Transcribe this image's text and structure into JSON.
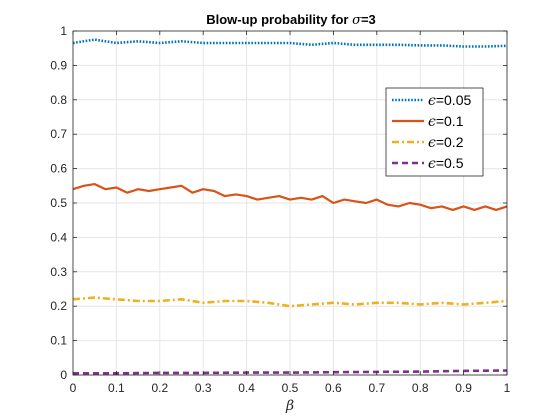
{
  "chart_data": {
    "type": "line",
    "title": {
      "prefix": "Blow-up probability for ",
      "symbol": "σ",
      "suffix": "=3"
    },
    "xlabel": "β",
    "ylabel": "",
    "xlim": [
      0,
      1
    ],
    "ylim": [
      0,
      1
    ],
    "grid": true,
    "legend_position": "right",
    "x_ticks": [
      "0",
      "0.1",
      "0.2",
      "0.3",
      "0.4",
      "0.5",
      "0.6",
      "0.7",
      "0.8",
      "0.9",
      "1"
    ],
    "y_ticks": [
      "0",
      "0.1",
      "0.2",
      "0.3",
      "0.4",
      "0.5",
      "0.6",
      "0.7",
      "0.8",
      "0.9",
      "1"
    ],
    "series": [
      {
        "legend_symbol": "ϵ",
        "legend_value": "=0.05",
        "color": "#0072BD",
        "style": "dotted",
        "x": [
          0,
          0.05,
          0.1,
          0.15,
          0.2,
          0.25,
          0.3,
          0.35,
          0.4,
          0.45,
          0.5,
          0.55,
          0.6,
          0.65,
          0.7,
          0.75,
          0.8,
          0.85,
          0.9,
          0.95,
          1
        ],
        "y": [
          0.965,
          0.975,
          0.965,
          0.97,
          0.965,
          0.97,
          0.965,
          0.965,
          0.965,
          0.965,
          0.965,
          0.96,
          0.965,
          0.96,
          0.96,
          0.96,
          0.958,
          0.958,
          0.955,
          0.955,
          0.957
        ]
      },
      {
        "legend_symbol": "ϵ",
        "legend_value": "=0.1",
        "color": "#D95319",
        "style": "solid",
        "x": [
          0,
          0.025,
          0.05,
          0.075,
          0.1,
          0.125,
          0.15,
          0.175,
          0.2,
          0.225,
          0.25,
          0.275,
          0.3,
          0.325,
          0.35,
          0.375,
          0.4,
          0.425,
          0.45,
          0.475,
          0.5,
          0.525,
          0.55,
          0.575,
          0.6,
          0.625,
          0.65,
          0.675,
          0.7,
          0.725,
          0.75,
          0.775,
          0.8,
          0.825,
          0.85,
          0.875,
          0.9,
          0.925,
          0.95,
          0.975,
          1
        ],
        "y": [
          0.54,
          0.55,
          0.555,
          0.54,
          0.545,
          0.53,
          0.54,
          0.535,
          0.54,
          0.545,
          0.55,
          0.53,
          0.54,
          0.535,
          0.52,
          0.525,
          0.52,
          0.51,
          0.515,
          0.52,
          0.51,
          0.515,
          0.51,
          0.52,
          0.5,
          0.51,
          0.505,
          0.5,
          0.51,
          0.495,
          0.49,
          0.5,
          0.495,
          0.485,
          0.49,
          0.48,
          0.49,
          0.48,
          0.49,
          0.48,
          0.49
        ]
      },
      {
        "legend_symbol": "ϵ",
        "legend_value": "=0.2",
        "color": "#EDB120",
        "style": "dashdot",
        "x": [
          0,
          0.05,
          0.1,
          0.15,
          0.2,
          0.25,
          0.3,
          0.35,
          0.4,
          0.45,
          0.5,
          0.55,
          0.6,
          0.65,
          0.7,
          0.75,
          0.8,
          0.85,
          0.9,
          0.95,
          1
        ],
        "y": [
          0.22,
          0.225,
          0.22,
          0.215,
          0.215,
          0.22,
          0.21,
          0.215,
          0.215,
          0.21,
          0.2,
          0.205,
          0.21,
          0.205,
          0.21,
          0.21,
          0.205,
          0.21,
          0.205,
          0.21,
          0.215
        ]
      },
      {
        "legend_symbol": "ϵ",
        "legend_value": "=0.5",
        "color": "#7E2F8E",
        "style": "dashed",
        "x": [
          0,
          0.1,
          0.2,
          0.3,
          0.4,
          0.5,
          0.6,
          0.7,
          0.8,
          0.9,
          1
        ],
        "y": [
          0.005,
          0.005,
          0.006,
          0.006,
          0.007,
          0.007,
          0.008,
          0.009,
          0.01,
          0.012,
          0.013
        ]
      }
    ]
  }
}
